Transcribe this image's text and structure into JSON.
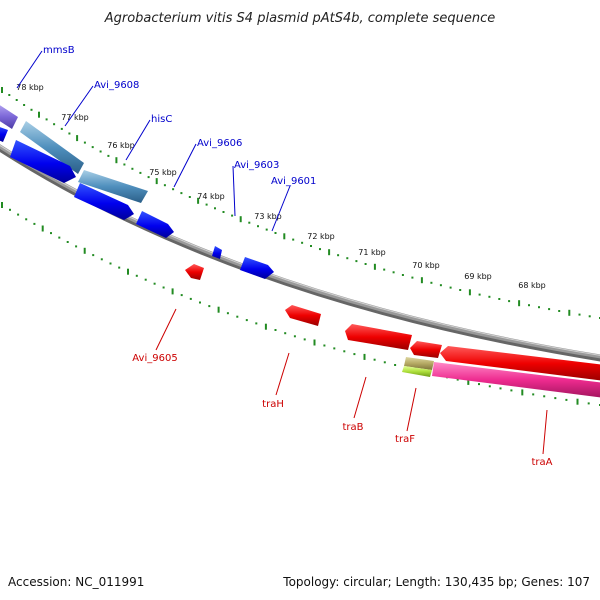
{
  "title": "Agrobacterium vitis S4 plasmid pAtS4b, complete sequence",
  "footer": {
    "accession": "Accession: NC_011991",
    "info": "Topology: circular; Length: 130,435 bp; Genes: 107"
  },
  "ruler_labels": [
    "78 kbp",
    "77 kbp",
    "76 kbp",
    "75 kbp",
    "74 kbp",
    "73 kbp",
    "72 kbp",
    "71 kbp",
    "70 kbp",
    "69 kbp",
    "68 kbp"
  ],
  "forward_gene_labels": [
    "mmsB",
    "Avi_9608",
    "hisC",
    "Avi_9606",
    "Avi_9603",
    "Avi_9601"
  ],
  "reverse_gene_labels": [
    "Avi_9605",
    "traH",
    "traB",
    "traF",
    "traA"
  ],
  "colors": {
    "forward_label": "#0000cc",
    "reverse_label": "#cc0000",
    "tick": "#228b22",
    "backbone": "#888888"
  }
}
